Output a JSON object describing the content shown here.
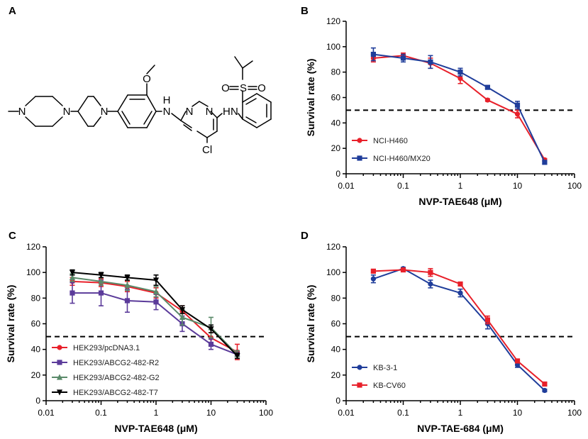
{
  "panels": [
    {
      "letter": "A"
    },
    {
      "letter": "B"
    },
    {
      "letter": "C"
    },
    {
      "letter": "D"
    }
  ],
  "molecule": {
    "atoms": [
      "N",
      "N",
      "N",
      "O",
      "N",
      "N",
      "H",
      "N",
      "H",
      "N",
      "S",
      "O",
      "O",
      "Cl"
    ]
  },
  "chart_data": [
    {
      "panel": "B",
      "type": "line",
      "xscale": "log",
      "xlabel": "NVP-TAE648 (μM)",
      "ylabel": "Survival rate (%)",
      "xlim": [
        0.01,
        100
      ],
      "ylim": [
        0,
        120
      ],
      "xticks": [
        "0.01",
        "0.1",
        "1",
        "10",
        "100"
      ],
      "yticks": [
        "0",
        "20",
        "40",
        "60",
        "80",
        "100",
        "120"
      ],
      "reference_y": 50,
      "legend_position": "bottom-left",
      "series": [
        {
          "name": "NCI-H460",
          "color": "#e8202a",
          "marker": "circle",
          "x": [
            0.03,
            0.1,
            0.3,
            1,
            3,
            10,
            30
          ],
          "y": [
            91,
            93,
            87,
            75,
            58,
            47,
            11
          ],
          "err": [
            3,
            2,
            4,
            4,
            1,
            3,
            1
          ]
        },
        {
          "name": "NCI-H460/MX20",
          "color": "#1f3d9a",
          "marker": "square",
          "x": [
            0.03,
            0.1,
            0.3,
            1,
            3,
            10,
            30
          ],
          "y": [
            94,
            91,
            88,
            80,
            68,
            54,
            9
          ],
          "err": [
            5,
            3,
            5,
            3,
            1,
            3,
            1
          ]
        }
      ]
    },
    {
      "panel": "C",
      "type": "line",
      "xscale": "log",
      "xlabel": "NVP-TAE648 (μM)",
      "ylabel": "Survival rate (%)",
      "xlim": [
        0.01,
        100
      ],
      "ylim": [
        0,
        120
      ],
      "xticks": [
        "0.01",
        "0.1",
        "1",
        "10",
        "100"
      ],
      "yticks": [
        "0",
        "20",
        "40",
        "60",
        "80",
        "100",
        "120"
      ],
      "reference_y": 50,
      "legend_position": "bottom-left",
      "series": [
        {
          "name": "HEK293/pcDNA3.1",
          "color": "#e8202a",
          "marker": "circle",
          "x": [
            0.03,
            0.1,
            0.3,
            1,
            3,
            10,
            30
          ],
          "y": [
            93,
            92,
            89,
            84,
            70,
            49,
            38
          ],
          "err": [
            3,
            3,
            4,
            4,
            4,
            4,
            6
          ]
        },
        {
          "name": "HEK293/ABCG2-482-R2",
          "color": "#5b3b9a",
          "marker": "square",
          "x": [
            0.03,
            0.1,
            0.3,
            1,
            3,
            10,
            30
          ],
          "y": [
            84,
            84,
            78,
            77,
            60,
            44,
            36
          ],
          "err": [
            8,
            10,
            9,
            6,
            6,
            4,
            3
          ]
        },
        {
          "name": "HEK293/ABCG2-482-G2",
          "color": "#5a8a6a",
          "marker": "triangle",
          "x": [
            0.03,
            0.1,
            0.3,
            1,
            3,
            10,
            30
          ],
          "y": [
            96,
            93,
            90,
            85,
            65,
            57,
            36
          ],
          "err": [
            3,
            3,
            4,
            4,
            6,
            8,
            3
          ]
        },
        {
          "name": "HEK293/ABCG2-482-T7",
          "color": "#000000",
          "marker": "triangle-down",
          "x": [
            0.03,
            0.1,
            0.3,
            1,
            3,
            10,
            30
          ],
          "y": [
            100,
            98,
            96,
            94,
            71,
            56,
            35
          ],
          "err": [
            2,
            2,
            2,
            4,
            3,
            3,
            2
          ]
        }
      ]
    },
    {
      "panel": "D",
      "type": "line",
      "xscale": "log",
      "xlabel": "NVP-TAE-684 (μM)",
      "ylabel": "Survival rate (%)",
      "xlim": [
        0.01,
        100
      ],
      "ylim": [
        0,
        120
      ],
      "xticks": [
        "0.01",
        "0.1",
        "1",
        "10",
        "100"
      ],
      "yticks": [
        "0",
        "20",
        "40",
        "60",
        "80",
        "100",
        "120"
      ],
      "reference_y": 50,
      "legend_position": "bottom-left",
      "series": [
        {
          "name": "KB-3-1",
          "color": "#1f3d9a",
          "marker": "circle",
          "x": [
            0.03,
            0.1,
            0.3,
            1,
            3,
            10,
            30
          ],
          "y": [
            95,
            103,
            91,
            84,
            60,
            28,
            8
          ],
          "err": [
            3,
            1,
            3,
            3,
            4,
            2,
            1
          ]
        },
        {
          "name": "KB-CV60",
          "color": "#e8202a",
          "marker": "square",
          "x": [
            0.03,
            0.1,
            0.3,
            1,
            3,
            10,
            30
          ],
          "y": [
            101,
            102,
            100,
            91,
            63,
            31,
            13
          ],
          "err": [
            1,
            1,
            3,
            1,
            3,
            1,
            1
          ]
        }
      ]
    }
  ]
}
